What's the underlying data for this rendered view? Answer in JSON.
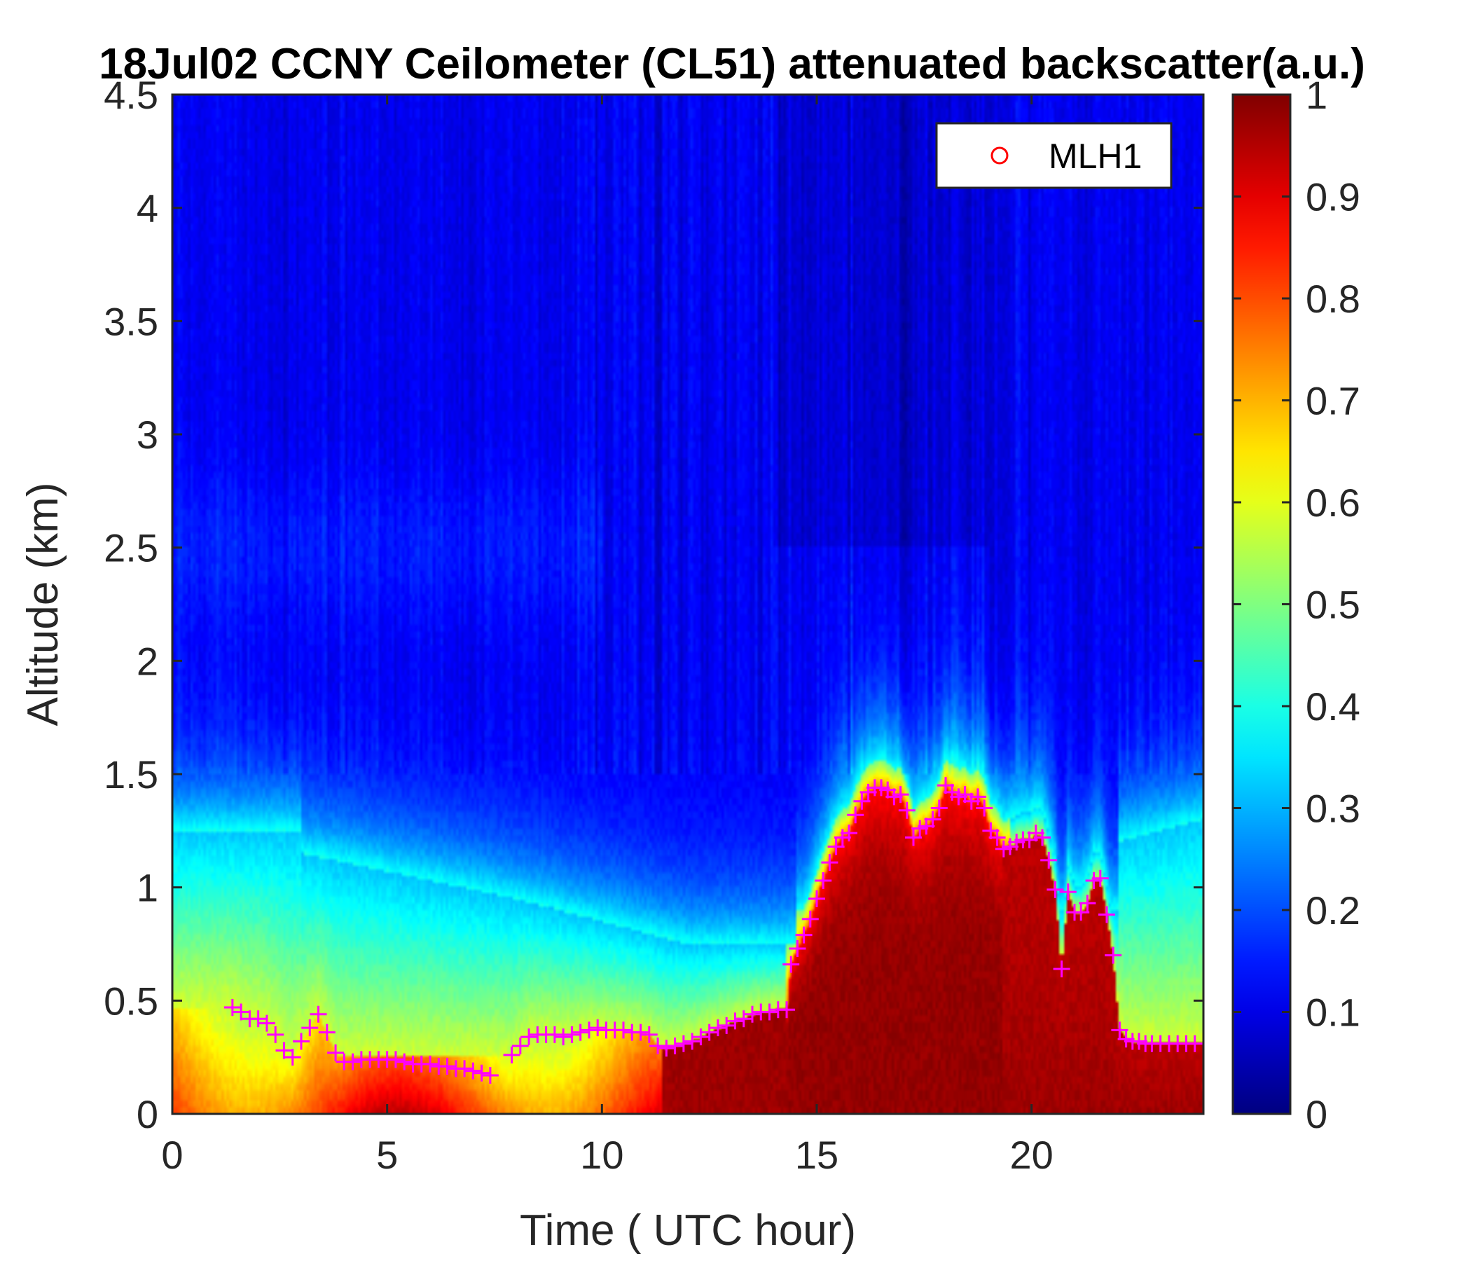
{
  "chart_data": {
    "type": "heatmap",
    "title": "18Jul02 CCNY Ceilometer (CL51) attenuated backscatter(a.u.)",
    "xlabel": "Time ( UTC hour)",
    "ylabel": "Altitude (km)",
    "xlim": [
      0,
      24
    ],
    "ylim": [
      0,
      4.5
    ],
    "x_ticks": [
      0,
      5,
      10,
      15,
      20
    ],
    "y_ticks": [
      0,
      0.5,
      1,
      1.5,
      2,
      2.5,
      3,
      3.5,
      4,
      4.5
    ],
    "y_tick_labels": [
      "0",
      "0.5",
      "1",
      "1.5",
      "2",
      "2.5",
      "3",
      "3.5",
      "4",
      "4.5"
    ],
    "colorbar": {
      "colormap": "jet",
      "range": [
        0,
        1
      ],
      "ticks": [
        0,
        0.1,
        0.2,
        0.3,
        0.4,
        0.5,
        0.6,
        0.7,
        0.8,
        0.9,
        1
      ],
      "tick_labels": [
        "0",
        "0.1",
        "0.2",
        "0.3",
        "0.4",
        "0.5",
        "0.6",
        "0.7",
        "0.8",
        "0.9",
        "1"
      ]
    },
    "legend": {
      "entries": [
        "MLH1"
      ],
      "placement": "top-right",
      "marker": "circle",
      "marker_color": "#ff0000"
    },
    "mlh_marker_color": "#ff00ff",
    "mlh_points": {
      "x": [
        1.4,
        1.6,
        1.8,
        2.0,
        2.2,
        2.4,
        2.6,
        2.8,
        3.0,
        3.2,
        3.4,
        3.6,
        3.8,
        4.0,
        4.2,
        4.4,
        4.6,
        4.8,
        5.0,
        5.2,
        5.4,
        5.6,
        5.8,
        6.0,
        6.2,
        6.4,
        6.6,
        6.8,
        7.0,
        7.2,
        7.4,
        7.9,
        8.1,
        8.3,
        8.5,
        8.7,
        8.9,
        9.1,
        9.3,
        9.5,
        9.7,
        9.9,
        10.1,
        10.3,
        10.5,
        10.7,
        10.9,
        11.1,
        11.3,
        11.5,
        11.7,
        11.9,
        12.1,
        12.3,
        12.5,
        12.7,
        12.9,
        13.1,
        13.3,
        13.5,
        13.7,
        13.9,
        14.1,
        14.3,
        14.4,
        14.55,
        14.7,
        14.85,
        15.0,
        15.15,
        15.3,
        15.45,
        15.6,
        15.75,
        15.9,
        16.05,
        16.2,
        16.35,
        16.5,
        16.65,
        16.8,
        16.95,
        17.1,
        17.25,
        17.4,
        17.55,
        17.7,
        17.85,
        18.0,
        18.15,
        18.3,
        18.45,
        18.6,
        18.75,
        18.9,
        19.05,
        19.2,
        19.35,
        19.5,
        19.65,
        19.8,
        19.95,
        20.1,
        20.25,
        20.4,
        20.55,
        20.7,
        20.85,
        21.0,
        21.15,
        21.3,
        21.45,
        21.6,
        21.75,
        21.9,
        22.05,
        22.2,
        22.35,
        22.5,
        22.65,
        22.8,
        23.0,
        23.2,
        23.4,
        23.6,
        23.8
      ],
      "y": [
        0.47,
        0.45,
        0.42,
        0.42,
        0.4,
        0.35,
        0.28,
        0.25,
        0.32,
        0.38,
        0.44,
        0.36,
        0.27,
        0.23,
        0.23,
        0.24,
        0.24,
        0.24,
        0.24,
        0.24,
        0.23,
        0.22,
        0.22,
        0.22,
        0.21,
        0.21,
        0.2,
        0.2,
        0.19,
        0.18,
        0.17,
        0.26,
        0.3,
        0.34,
        0.35,
        0.35,
        0.35,
        0.34,
        0.35,
        0.36,
        0.37,
        0.38,
        0.37,
        0.37,
        0.37,
        0.36,
        0.36,
        0.35,
        0.3,
        0.29,
        0.3,
        0.31,
        0.32,
        0.34,
        0.36,
        0.38,
        0.39,
        0.41,
        0.42,
        0.44,
        0.45,
        0.45,
        0.46,
        0.46,
        0.66,
        0.73,
        0.79,
        0.86,
        0.95,
        1.03,
        1.11,
        1.18,
        1.22,
        1.24,
        1.32,
        1.38,
        1.42,
        1.44,
        1.44,
        1.43,
        1.4,
        1.41,
        1.34,
        1.22,
        1.26,
        1.27,
        1.3,
        1.35,
        1.45,
        1.42,
        1.4,
        1.41,
        1.38,
        1.4,
        1.35,
        1.25,
        1.22,
        1.17,
        1.18,
        1.2,
        1.21,
        1.21,
        1.24,
        1.22,
        1.12,
        0.99,
        0.64,
        0.98,
        0.89,
        0.89,
        0.93,
        1.03,
        1.04,
        0.88,
        0.7,
        0.37,
        0.33,
        0.32,
        0.32,
        0.31,
        0.31,
        0.31,
        0.31,
        0.31,
        0.31,
        0.31
      ]
    }
  }
}
